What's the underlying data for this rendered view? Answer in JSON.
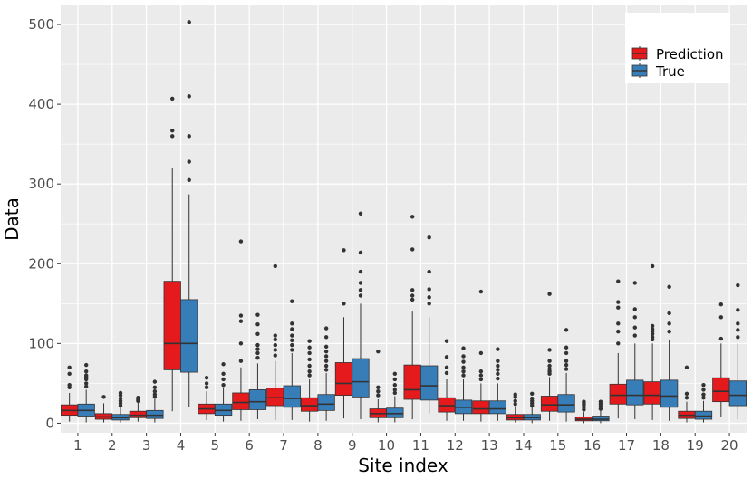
{
  "chart_data": {
    "type": "boxplot",
    "xlabel": "Site index",
    "ylabel": "Data",
    "ylim": [
      -12,
      525
    ],
    "y_ticks": [
      0,
      100,
      200,
      300,
      400,
      500
    ],
    "categories": [
      "1",
      "2",
      "3",
      "4",
      "5",
      "6",
      "7",
      "8",
      "9",
      "10",
      "11",
      "12",
      "13",
      "14",
      "15",
      "16",
      "17",
      "18",
      "19",
      "20"
    ],
    "legend": {
      "position": "top-right",
      "items": [
        "Prediction",
        "True"
      ]
    },
    "colors": {
      "Prediction": "#e41a1c",
      "True": "#377eb8",
      "panel": "#ebebeb",
      "grid": "#ffffff",
      "outlier": "#333333"
    },
    "series": [
      {
        "name": "Prediction",
        "boxes": [
          {
            "whisker_low": 2,
            "q1": 10,
            "median": 16,
            "q3": 23,
            "whisker_high": 38,
            "outliers": [
              45,
              48,
              62,
              70
            ]
          },
          {
            "whisker_low": 1,
            "q1": 5,
            "median": 8,
            "q3": 12,
            "whisker_high": 25,
            "outliers": [
              33
            ]
          },
          {
            "whisker_low": 2,
            "q1": 7,
            "median": 10,
            "q3": 15,
            "whisker_high": 26,
            "outliers": [
              28,
              30,
              32
            ]
          },
          {
            "whisker_low": 15,
            "q1": 67,
            "median": 100,
            "q3": 178,
            "whisker_high": 320,
            "outliers": [
              360,
              367,
              407
            ]
          },
          {
            "whisker_low": 4,
            "q1": 12,
            "median": 18,
            "q3": 24,
            "whisker_high": 40,
            "outliers": [
              45,
              50,
              57
            ]
          },
          {
            "whisker_low": 3,
            "q1": 17,
            "median": 26,
            "q3": 38,
            "whisker_high": 70,
            "outliers": [
              78,
              100,
              128,
              135,
              228
            ]
          },
          {
            "whisker_low": 4,
            "q1": 22,
            "median": 32,
            "q3": 44,
            "whisker_high": 78,
            "outliers": [
              85,
              92,
              98,
              105,
              110,
              197
            ]
          },
          {
            "whisker_low": 2,
            "q1": 15,
            "median": 22,
            "q3": 32,
            "whisker_high": 55,
            "outliers": [
              60,
              65,
              72,
              80,
              88,
              95,
              103
            ]
          },
          {
            "whisker_low": 6,
            "q1": 35,
            "median": 50,
            "q3": 76,
            "whisker_high": 133,
            "outliers": [
              150,
              217
            ]
          },
          {
            "whisker_low": 1,
            "q1": 7,
            "median": 12,
            "q3": 18,
            "whisker_high": 30,
            "outliers": [
              35,
              40,
              45,
              90
            ]
          },
          {
            "whisker_low": 5,
            "q1": 30,
            "median": 42,
            "q3": 73,
            "whisker_high": 140,
            "outliers": [
              155,
              160,
              167,
              218,
              259
            ]
          },
          {
            "whisker_low": 3,
            "q1": 14,
            "median": 22,
            "q3": 32,
            "whisker_high": 55,
            "outliers": [
              63,
              70,
              83,
              103
            ]
          },
          {
            "whisker_low": 2,
            "q1": 12,
            "median": 18,
            "q3": 28,
            "whisker_high": 50,
            "outliers": [
              55,
              60,
              65,
              88,
              165
            ]
          },
          {
            "whisker_low": 1,
            "q1": 4,
            "median": 7,
            "q3": 11,
            "whisker_high": 20,
            "outliers": [
              24,
              28,
              33,
              36
            ]
          },
          {
            "whisker_low": 3,
            "q1": 15,
            "median": 23,
            "q3": 34,
            "whisker_high": 58,
            "outliers": [
              62,
              65,
              68,
              72,
              78,
              92,
              162
            ]
          },
          {
            "whisker_low": 0,
            "q1": 3,
            "median": 5,
            "q3": 8,
            "whisker_high": 14,
            "outliers": [
              17,
              20,
              23,
              25,
              27
            ]
          },
          {
            "whisker_low": 6,
            "q1": 24,
            "median": 35,
            "q3": 49,
            "whisker_high": 88,
            "outliers": [
              100,
              115,
              125,
              145,
              152,
              178
            ]
          },
          {
            "whisker_low": 4,
            "q1": 24,
            "median": 35,
            "q3": 52,
            "whisker_high": 100,
            "outliers": [
              105,
              108,
              112,
              115,
              118,
              122,
              197
            ]
          },
          {
            "whisker_low": 1,
            "q1": 6,
            "median": 10,
            "q3": 15,
            "whisker_high": 27,
            "outliers": [
              32,
              37,
              70
            ]
          },
          {
            "whisker_low": 8,
            "q1": 27,
            "median": 40,
            "q3": 57,
            "whisker_high": 100,
            "outliers": [
              106,
              133,
              149
            ]
          }
        ]
      },
      {
        "name": "True",
        "boxes": [
          {
            "whisker_low": 1,
            "q1": 9,
            "median": 16,
            "q3": 24,
            "whisker_high": 42,
            "outliers": [
              46,
              50,
              55,
              58,
              60,
              65,
              73
            ]
          },
          {
            "whisker_low": 1,
            "q1": 4,
            "median": 7,
            "q3": 11,
            "whisker_high": 20,
            "outliers": [
              22,
              25,
              28,
              31,
              35,
              38
            ]
          },
          {
            "whisker_low": 1,
            "q1": 6,
            "median": 10,
            "q3": 16,
            "whisker_high": 30,
            "outliers": [
              33,
              36,
              40,
              45,
              52
            ]
          },
          {
            "whisker_low": 20,
            "q1": 64,
            "median": 100,
            "q3": 155,
            "whisker_high": 287,
            "outliers": [
              305,
              328,
              360,
              410,
              503
            ]
          },
          {
            "whisker_low": 2,
            "q1": 10,
            "median": 16,
            "q3": 24,
            "whisker_high": 45,
            "outliers": [
              48,
              55,
              62,
              74
            ]
          },
          {
            "whisker_low": 5,
            "q1": 17,
            "median": 27,
            "q3": 42,
            "whisker_high": 75,
            "outliers": [
              82,
              88,
              93,
              98,
              112,
              124,
              136
            ]
          },
          {
            "whisker_low": 4,
            "q1": 20,
            "median": 31,
            "q3": 47,
            "whisker_high": 88,
            "outliers": [
              92,
              98,
              104,
              110,
              118,
              125,
              153
            ]
          },
          {
            "whisker_low": 3,
            "q1": 16,
            "median": 24,
            "q3": 36,
            "whisker_high": 63,
            "outliers": [
              67,
              72,
              78,
              84,
              90,
              96,
              108,
              119
            ]
          },
          {
            "whisker_low": 5,
            "q1": 33,
            "median": 52,
            "q3": 81,
            "whisker_high": 150,
            "outliers": [
              160,
              167,
              176,
              190,
              214,
              263
            ]
          },
          {
            "whisker_low": 1,
            "q1": 7,
            "median": 12,
            "q3": 19,
            "whisker_high": 34,
            "outliers": [
              38,
              42,
              48,
              55,
              62
            ]
          },
          {
            "whisker_low": 12,
            "q1": 29,
            "median": 47,
            "q3": 72,
            "whisker_high": 133,
            "outliers": [
              150,
              158,
              168,
              190,
              233
            ]
          },
          {
            "whisker_low": 3,
            "q1": 12,
            "median": 20,
            "q3": 29,
            "whisker_high": 55,
            "outliers": [
              60,
              65,
              70,
              77,
              84,
              94
            ]
          },
          {
            "whisker_low": 3,
            "q1": 12,
            "median": 18,
            "q3": 28,
            "whisker_high": 50,
            "outliers": [
              56,
              62,
              67,
              72,
              78,
              93
            ]
          },
          {
            "whisker_low": 0,
            "q1": 4,
            "median": 7,
            "q3": 11,
            "whisker_high": 20,
            "outliers": [
              22,
              25,
              28,
              31,
              37
            ]
          },
          {
            "whisker_low": 2,
            "q1": 14,
            "median": 23,
            "q3": 36,
            "whisker_high": 63,
            "outliers": [
              68,
              73,
              78,
              88,
              95,
              117
            ]
          },
          {
            "whisker_low": 0,
            "q1": 3,
            "median": 5,
            "q3": 9,
            "whisker_high": 16,
            "outliers": [
              18,
              21,
              24,
              27
            ]
          },
          {
            "whisker_low": 5,
            "q1": 23,
            "median": 35,
            "q3": 54,
            "whisker_high": 100,
            "outliers": [
              110,
              120,
              133,
              143,
              176
            ]
          },
          {
            "whisker_low": 3,
            "q1": 20,
            "median": 34,
            "q3": 54,
            "whisker_high": 105,
            "outliers": [
              115,
              125,
              138,
              171
            ]
          },
          {
            "whisker_low": 1,
            "q1": 5,
            "median": 9,
            "q3": 15,
            "whisker_high": 28,
            "outliers": [
              32,
              36,
              42,
              48
            ]
          },
          {
            "whisker_low": 5,
            "q1": 22,
            "median": 35,
            "q3": 53,
            "whisker_high": 100,
            "outliers": [
              108,
              117,
              125,
              142,
              173
            ]
          }
        ]
      }
    ]
  }
}
